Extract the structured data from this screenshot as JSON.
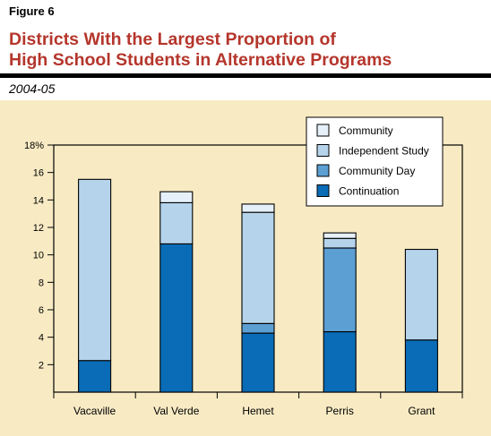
{
  "figure_label": "Figure 6",
  "title_lines": [
    "Districts With the Largest Proportion of",
    "High School Students in Alternative Programs"
  ],
  "subtitle": "2004-05",
  "colors": {
    "title": "#b5362c",
    "panel": "#f8ebc4",
    "Community": "#e6f0fa",
    "Independent Study": "#b5d4ec",
    "Community Day": "#5c9fd3",
    "Continuation": "#0a6cb6"
  },
  "chart_data": {
    "type": "bar",
    "stacked": true,
    "categories": [
      "Vacaville",
      "Val Verde",
      "Hemet",
      "Perris",
      "Grant"
    ],
    "series": [
      {
        "name": "Continuation",
        "values": [
          2.3,
          10.8,
          4.3,
          4.4,
          3.8
        ]
      },
      {
        "name": "Community Day",
        "values": [
          0,
          0,
          0.7,
          6.1,
          0
        ]
      },
      {
        "name": "Independent Study",
        "values": [
          13.2,
          3.0,
          8.1,
          0.7,
          6.6
        ]
      },
      {
        "name": "Community",
        "values": [
          0,
          0.8,
          0.6,
          0.4,
          0
        ]
      }
    ],
    "legend_order": [
      "Community",
      "Independent Study",
      "Community Day",
      "Continuation"
    ],
    "ylim": [
      0,
      18
    ],
    "yticks": [
      2,
      4,
      6,
      8,
      10,
      12,
      14,
      16,
      18
    ],
    "ytick_labels": [
      "2",
      "4",
      "6",
      "8",
      "10",
      "12",
      "14",
      "16",
      "18%"
    ],
    "legend_position": "top-right",
    "grid": false
  }
}
